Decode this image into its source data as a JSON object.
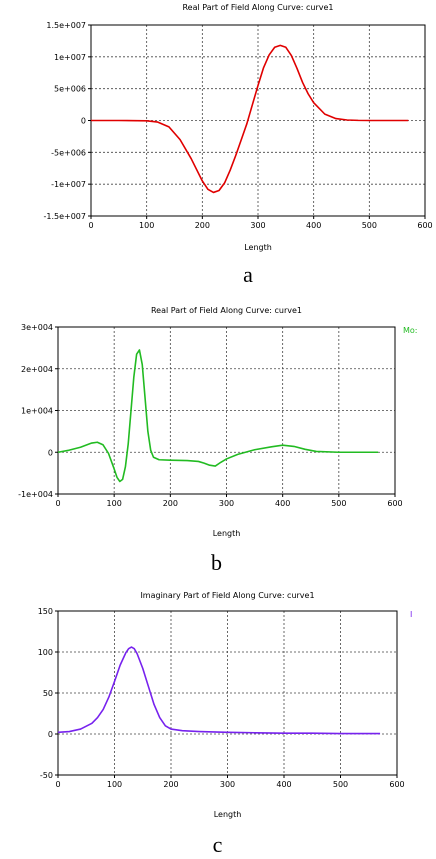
{
  "chart_data": [
    {
      "type": "line",
      "panel_label": "a",
      "title": "Real Part of Field Along Curve: curve1",
      "xlabel": "Length",
      "ylabel": "",
      "xlim": [
        0,
        600
      ],
      "ylim": [
        -15000000,
        15000000
      ],
      "xticks": [
        0,
        100,
        200,
        300,
        400,
        500,
        600
      ],
      "xtick_labels": [
        "0",
        "100",
        "200",
        "300",
        "400",
        "500",
        "600"
      ],
      "yticks": [
        -15000000,
        -10000000,
        -5000000,
        0,
        5000000,
        10000000,
        15000000
      ],
      "ytick_labels": [
        "-1.5e+007",
        "-1e+007",
        "-5e+006",
        "0",
        "5e+006",
        "1e+007",
        "1.5e+007"
      ],
      "grid": true,
      "legend_text": "",
      "color": "#e00000",
      "series": [
        {
          "x": [
            0,
            50,
            100,
            120,
            140,
            160,
            180,
            200,
            210,
            220,
            230,
            240,
            250,
            260,
            270,
            280,
            290,
            300,
            310,
            320,
            330,
            340,
            350,
            360,
            370,
            380,
            390,
            400,
            420,
            440,
            460,
            480,
            500,
            550,
            570
          ],
          "values": [
            0,
            0,
            -50000,
            -250000,
            -1000000,
            -3000000,
            -6000000,
            -9500000,
            -10800000,
            -11300000,
            -11000000,
            -9800000,
            -7800000,
            -5500000,
            -3000000,
            -500000,
            2500000,
            5500000,
            8300000,
            10300000,
            11500000,
            11800000,
            11500000,
            10200000,
            8200000,
            6000000,
            4200000,
            2800000,
            1000000,
            300000,
            80000,
            20000,
            0,
            0,
            0
          ]
        }
      ]
    },
    {
      "type": "line",
      "panel_label": "b",
      "title": "Real Part of Field Along Curve: curve1",
      "xlabel": "Length",
      "ylabel": "",
      "xlim": [
        0,
        600
      ],
      "ylim": [
        -10000,
        30000
      ],
      "xticks": [
        0,
        100,
        200,
        300,
        400,
        500,
        600
      ],
      "xtick_labels": [
        "0",
        "100",
        "200",
        "300",
        "400",
        "500",
        "600"
      ],
      "yticks": [
        -10000,
        0,
        10000,
        20000,
        30000
      ],
      "ytick_labels": [
        "-1e+004",
        "0",
        "1e+004",
        "2e+004",
        "3e+004"
      ],
      "grid": true,
      "legend_text": "Mo:",
      "color": "#22bb22",
      "series": [
        {
          "x": [
            0,
            20,
            40,
            60,
            70,
            80,
            90,
            100,
            105,
            110,
            115,
            120,
            125,
            130,
            135,
            140,
            145,
            150,
            155,
            160,
            165,
            170,
            180,
            200,
            230,
            250,
            260,
            270,
            280,
            290,
            300,
            320,
            350,
            380,
            400,
            420,
            440,
            460,
            500,
            570
          ],
          "values": [
            0,
            500,
            1200,
            2200,
            2400,
            1800,
            -300,
            -4000,
            -6000,
            -7000,
            -6500,
            -3500,
            2000,
            10000,
            18000,
            23500,
            24500,
            21000,
            13000,
            5000,
            500,
            -1200,
            -1800,
            -1900,
            -2000,
            -2200,
            -2600,
            -3100,
            -3300,
            -2400,
            -1600,
            -500,
            600,
            1300,
            1700,
            1400,
            700,
            200,
            0,
            0
          ]
        }
      ]
    },
    {
      "type": "line",
      "panel_label": "c",
      "title": "Imaginary Part of Field Along Curve: curve1",
      "xlabel": "Length",
      "ylabel": "",
      "xlim": [
        0,
        600
      ],
      "ylim": [
        -50,
        150
      ],
      "xticks": [
        0,
        100,
        200,
        300,
        400,
        500,
        600
      ],
      "xtick_labels": [
        "0",
        "100",
        "200",
        "300",
        "400",
        "500",
        "600"
      ],
      "yticks": [
        -50,
        0,
        50,
        100,
        150
      ],
      "ytick_labels": [
        "-50",
        "0",
        "50",
        "100",
        "150"
      ],
      "grid": true,
      "legend_text": "I",
      "color": "#7722ee",
      "series": [
        {
          "x": [
            0,
            20,
            40,
            60,
            70,
            80,
            90,
            100,
            110,
            120,
            125,
            130,
            135,
            140,
            150,
            160,
            170,
            180,
            190,
            200,
            220,
            250,
            300,
            350,
            400,
            450,
            500,
            570
          ],
          "values": [
            2,
            3,
            6,
            13,
            20,
            30,
            45,
            64,
            84,
            99,
            104,
            106,
            104,
            98,
            80,
            58,
            36,
            20,
            10,
            6,
            4,
            3,
            2,
            1.5,
            1,
            1,
            0.5,
            0.5
          ]
        }
      ]
    }
  ]
}
